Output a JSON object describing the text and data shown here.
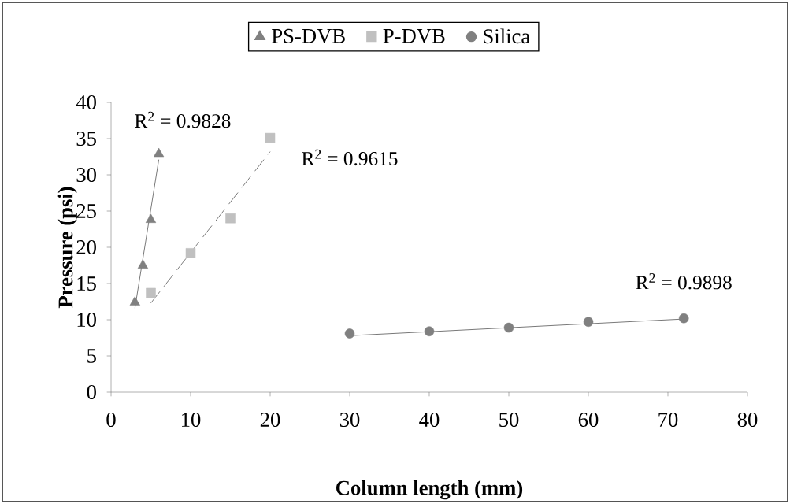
{
  "chart_data": {
    "type": "scatter",
    "xlabel": "Column length (mm)",
    "ylabel": "Pressure (psi)",
    "xlim": [
      0,
      80
    ],
    "ylim": [
      0,
      40
    ],
    "xticks": [
      0,
      10,
      20,
      30,
      40,
      50,
      60,
      70,
      80
    ],
    "yticks": [
      0,
      5,
      10,
      15,
      20,
      25,
      30,
      35,
      40
    ],
    "legend": "top",
    "series": [
      {
        "name": "PS-DVB",
        "marker": "triangle",
        "color": "#808080",
        "x": [
          3,
          4,
          5,
          6
        ],
        "values": [
          12.4,
          17.5,
          23.8,
          32.9
        ]
      },
      {
        "name": "P-DVB",
        "marker": "square",
        "color": "#c0c0c0",
        "x": [
          5,
          10,
          15,
          20
        ],
        "values": [
          13.7,
          19.2,
          24,
          35.1
        ]
      },
      {
        "name": "Silica",
        "marker": "circle",
        "color": "#808080",
        "x": [
          30,
          40,
          50,
          60,
          72
        ],
        "values": [
          8.1,
          8.4,
          8.9,
          9.7,
          10.2
        ]
      },
      {
        "type": "line",
        "color": "#000000",
        "line_style": "solid",
        "x": [
          3,
          6
        ],
        "values": [
          11.6,
          32.1
        ]
      },
      {
        "type": "line",
        "color": "#000000",
        "line_style": "dashed",
        "x": [
          5,
          20
        ],
        "values": [
          12.3,
          33.2
        ]
      },
      {
        "type": "line",
        "color": "#000000",
        "line_style": "solid",
        "x": [
          30,
          72
        ],
        "values": [
          7.8,
          10.1
        ]
      }
    ],
    "annotations": [
      "R$^{2}$ = 0.9828",
      "R$^{2}$ = 0.9615",
      "R$^{2}$ = 0.9898"
    ]
  }
}
